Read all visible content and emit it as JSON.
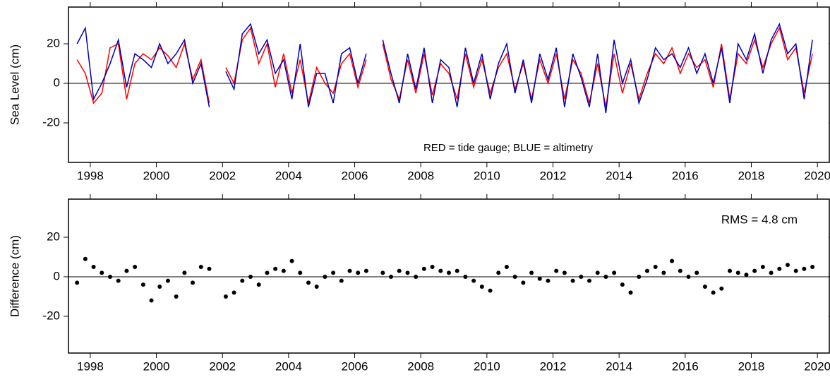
{
  "chart_data": [
    {
      "type": "line",
      "ylabel": "Sea Level (cm)",
      "annotation": "RED = tide gauge;   BLUE = altimetry",
      "x": [
        1997.6,
        1997.85,
        1998.1,
        1998.35,
        1998.6,
        1998.85,
        1999.1,
        1999.35,
        1999.6,
        1999.85,
        2000.1,
        2000.35,
        2000.6,
        2000.85,
        2001.1,
        2001.35,
        2001.6,
        2001.85,
        2002.1,
        2002.35,
        2002.6,
        2002.85,
        2003.1,
        2003.35,
        2003.6,
        2003.85,
        2004.1,
        2004.35,
        2004.6,
        2004.85,
        2005.1,
        2005.35,
        2005.6,
        2005.85,
        2006.1,
        2006.35,
        2006.6,
        2006.85,
        2007.1,
        2007.35,
        2007.6,
        2007.85,
        2008.1,
        2008.35,
        2008.6,
        2008.85,
        2009.1,
        2009.35,
        2009.6,
        2009.85,
        2010.1,
        2010.35,
        2010.6,
        2010.85,
        2011.1,
        2011.35,
        2011.6,
        2011.85,
        2012.1,
        2012.35,
        2012.6,
        2012.85,
        2013.1,
        2013.35,
        2013.6,
        2013.85,
        2014.1,
        2014.35,
        2014.6,
        2014.85,
        2015.1,
        2015.35,
        2015.6,
        2015.85,
        2016.1,
        2016.35,
        2016.6,
        2016.85,
        2017.1,
        2017.35,
        2017.6,
        2017.85,
        2018.1,
        2018.35,
        2018.6,
        2018.85,
        2019.1,
        2019.35,
        2019.6,
        2019.85
      ],
      "series": [
        {
          "color": "#ff0000",
          "values": [
            12,
            5,
            -10,
            -5,
            18,
            20,
            -8,
            10,
            15,
            12,
            18,
            14,
            8,
            20,
            2,
            12,
            -10,
            null,
            8,
            0,
            22,
            28,
            10,
            20,
            -2,
            15,
            -5,
            12,
            -10,
            8,
            0,
            -5,
            10,
            15,
            -2,
            12,
            null,
            20,
            2,
            -8,
            12,
            -5,
            15,
            -6,
            10,
            5,
            -8,
            15,
            -2,
            12,
            -5,
            8,
            15,
            -3,
            10,
            -8,
            12,
            0,
            15,
            -8,
            12,
            5,
            -10,
            10,
            -12,
            15,
            -5,
            10,
            -8,
            5,
            15,
            10,
            18,
            5,
            15,
            8,
            12,
            -2,
            20,
            -8,
            15,
            10,
            22,
            8,
            20,
            28,
            12,
            18,
            -5,
            15
          ]
        },
        {
          "color": "#0000b4",
          "values": [
            20,
            28,
            -8,
            0,
            10,
            22,
            -2,
            15,
            12,
            8,
            20,
            10,
            15,
            22,
            0,
            10,
            -12,
            null,
            6,
            -3,
            25,
            30,
            15,
            22,
            5,
            12,
            -8,
            20,
            -12,
            5,
            5,
            -10,
            15,
            18,
            0,
            15,
            null,
            22,
            5,
            -10,
            15,
            -3,
            18,
            -10,
            12,
            8,
            -12,
            18,
            0,
            15,
            -8,
            10,
            20,
            -5,
            12,
            -10,
            15,
            2,
            18,
            -12,
            15,
            3,
            -12,
            15,
            -15,
            22,
            0,
            12,
            -10,
            2,
            18,
            12,
            15,
            8,
            18,
            5,
            15,
            0,
            18,
            -10,
            20,
            12,
            25,
            5,
            22,
            30,
            15,
            20,
            -8,
            22
          ]
        }
      ],
      "xlim": [
        1997.34,
        2020.36
      ],
      "ylim": [
        -40,
        38.6
      ],
      "xticks": [
        1998,
        2000,
        2002,
        2004,
        2006,
        2008,
        2010,
        2012,
        2014,
        2016,
        2018,
        2020
      ],
      "yticks": [
        -20,
        0,
        20
      ]
    },
    {
      "type": "scatter",
      "ylabel": "Difference (cm)",
      "annotation": "RMS =  4.8 cm",
      "color": "#000000",
      "x": [
        1997.6,
        1997.85,
        1998.1,
        1998.35,
        1998.6,
        1998.85,
        1999.1,
        1999.35,
        1999.6,
        1999.85,
        2000.1,
        2000.35,
        2000.6,
        2000.85,
        2001.1,
        2001.35,
        2001.6,
        2002.1,
        2002.35,
        2002.6,
        2002.85,
        2003.1,
        2003.35,
        2003.6,
        2003.85,
        2004.1,
        2004.35,
        2004.6,
        2004.85,
        2005.1,
        2005.35,
        2005.6,
        2005.85,
        2006.1,
        2006.35,
        2006.85,
        2007.1,
        2007.35,
        2007.6,
        2007.85,
        2008.1,
        2008.35,
        2008.6,
        2008.85,
        2009.1,
        2009.35,
        2009.6,
        2009.85,
        2010.1,
        2010.35,
        2010.6,
        2010.85,
        2011.1,
        2011.35,
        2011.6,
        2011.85,
        2012.1,
        2012.35,
        2012.6,
        2012.85,
        2013.1,
        2013.35,
        2013.6,
        2013.85,
        2014.1,
        2014.35,
        2014.6,
        2014.85,
        2015.1,
        2015.35,
        2015.6,
        2015.85,
        2016.1,
        2016.35,
        2016.6,
        2016.85,
        2017.1,
        2017.35,
        2017.6,
        2017.85,
        2018.1,
        2018.35,
        2018.6,
        2018.85,
        2019.1,
        2019.35,
        2019.6,
        2019.85
      ],
      "values": [
        -3,
        9,
        5,
        2,
        0,
        -2,
        3,
        5,
        -4,
        -12,
        -5,
        -2,
        -10,
        2,
        -3,
        5,
        4,
        -10,
        -8,
        -2,
        0,
        -4,
        2,
        4,
        3,
        8,
        2,
        -3,
        -5,
        0,
        2,
        -2,
        3,
        2,
        3,
        2,
        0,
        3,
        2,
        0,
        4,
        5,
        3,
        2,
        3,
        0,
        -2,
        -5,
        -7,
        2,
        5,
        0,
        -3,
        2,
        -1,
        -2,
        3,
        2,
        -2,
        0,
        -2,
        2,
        0,
        2,
        -4,
        -8,
        0,
        3,
        5,
        2,
        8,
        3,
        0,
        2,
        -5,
        -8,
        -6,
        3,
        2,
        1,
        3,
        5,
        2,
        4,
        6,
        3,
        4,
        5
      ],
      "xlim": [
        1997.34,
        2020.36
      ],
      "ylim": [
        -38.6,
        39.3
      ],
      "xticks": [
        1998,
        2000,
        2002,
        2004,
        2006,
        2008,
        2010,
        2012,
        2014,
        2016,
        2018,
        2020
      ],
      "yticks": [
        -20,
        0,
        20
      ]
    }
  ]
}
